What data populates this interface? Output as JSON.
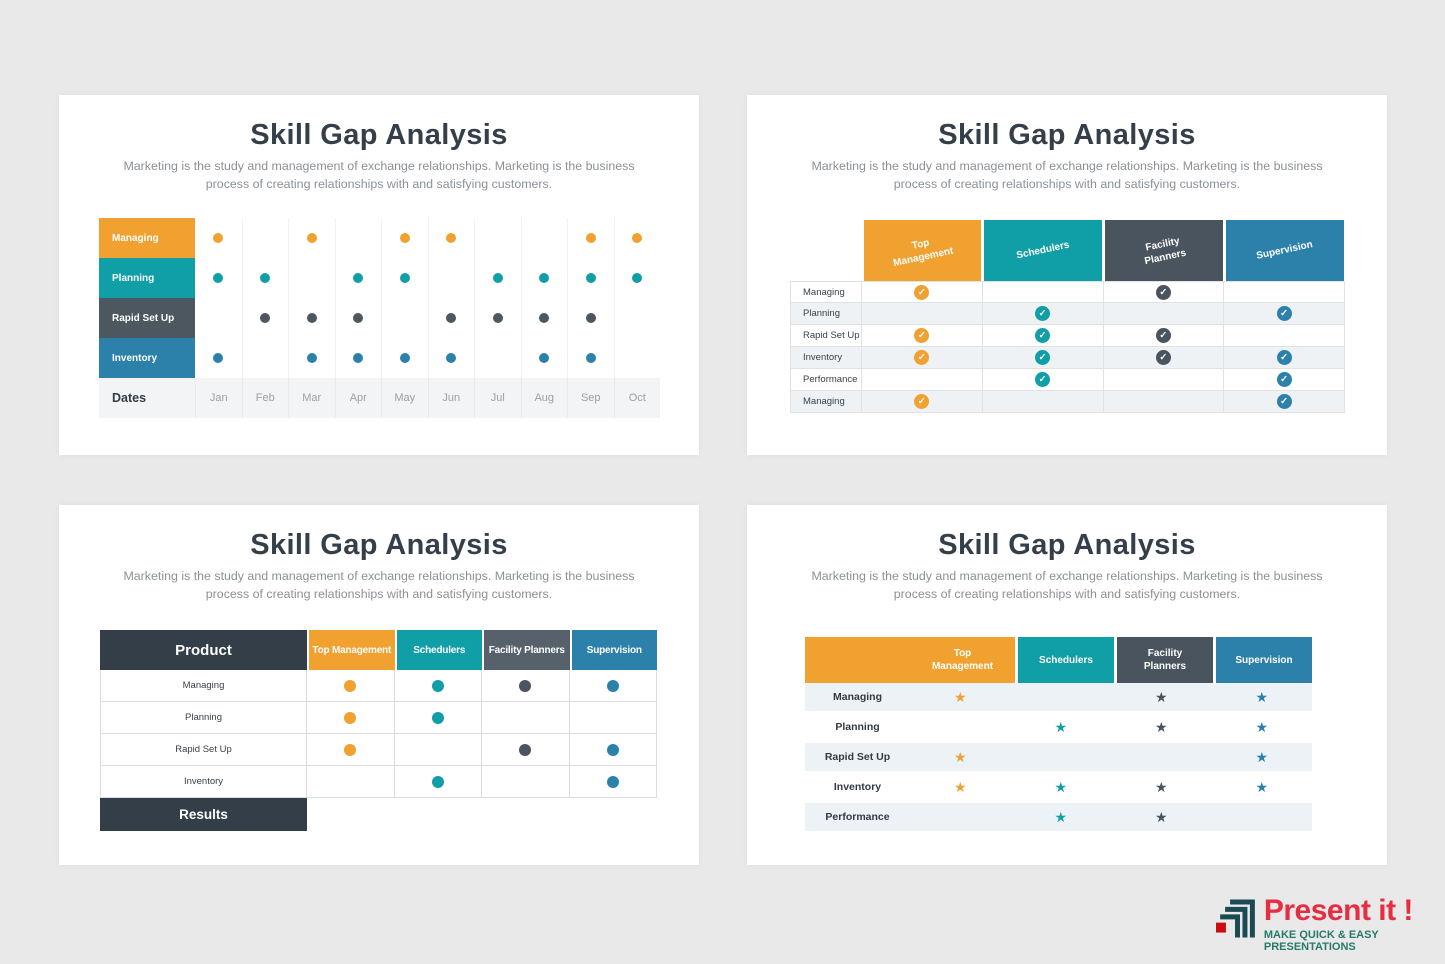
{
  "colors": {
    "orange": "#F0A12F",
    "teal": "#109FA6",
    "slate": "#4D575F",
    "darkslate": "#4A545E",
    "grayblue": "#57616B",
    "blue": "#2C81AA",
    "dark": "#333E48",
    "heading": "#353F4A",
    "page_bg": "#E9E9EA",
    "logo_red": "#E62E42",
    "logo_green": "#27796B",
    "logo_icon": "#1C4A52",
    "logo_icon_red": "#CC0A0F"
  },
  "chart_data": [
    {
      "type": "table",
      "variant": "timeline-dot-chart",
      "title": "Skill Gap Analysis",
      "subtitle_line1": "Marketing is the study and management of exchange relationships. Marketing is the business",
      "subtitle_line2": "process of creating relationships with and satisfying customers.",
      "corner_label": "Dates",
      "columns": [
        "Jan",
        "Feb",
        "Mar",
        "Apr",
        "May",
        "Jun",
        "Jul",
        "Aug",
        "Sep",
        "Oct"
      ],
      "rows": [
        {
          "label": "Managing",
          "color": "orange",
          "dots": [
            "Jan",
            "Mar",
            "May",
            "Jun",
            "Sep",
            "Oct"
          ]
        },
        {
          "label": "Planning",
          "color": "teal",
          "dots": [
            "Jan",
            "Feb",
            "Apr",
            "May",
            "Jul",
            "Aug",
            "Sep",
            "Oct"
          ]
        },
        {
          "label": "Rapid Set Up",
          "color": "slate",
          "dots": [
            "Feb",
            "Mar",
            "Apr",
            "Jun",
            "Jul",
            "Aug",
            "Sep"
          ]
        },
        {
          "label": "Inventory",
          "color": "blue",
          "dots": [
            "Jan",
            "Mar",
            "Apr",
            "May",
            "Jun",
            "Aug",
            "Sep"
          ]
        }
      ]
    },
    {
      "type": "table",
      "variant": "checkmark-matrix",
      "title": "Skill Gap Analysis",
      "subtitle_line1": "Marketing is the study and management of exchange relationships. Marketing is the business",
      "subtitle_line2": "process of creating relationships with and satisfying customers.",
      "columns": [
        {
          "label": "Top Management",
          "color": "orange"
        },
        {
          "label": "Schedulers",
          "color": "teal"
        },
        {
          "label": "Facility Planners",
          "color": "darkslate"
        },
        {
          "label": "Supervision",
          "color": "blue"
        }
      ],
      "rows": [
        {
          "label": "Managing",
          "marks": [
            1,
            0,
            1,
            0
          ]
        },
        {
          "label": "Planning",
          "marks": [
            0,
            1,
            0,
            1
          ]
        },
        {
          "label": "Rapid Set Up",
          "marks": [
            1,
            1,
            1,
            0
          ]
        },
        {
          "label": "Inventory",
          "marks": [
            1,
            1,
            1,
            1
          ]
        },
        {
          "label": "Performance",
          "marks": [
            0,
            1,
            0,
            1
          ]
        },
        {
          "label": "Managing",
          "marks": [
            1,
            0,
            0,
            1
          ]
        }
      ]
    },
    {
      "type": "table",
      "variant": "product-dot-matrix",
      "title": "Skill Gap Analysis",
      "subtitle_line1": "Marketing is the study and management of exchange relationships. Marketing is the business",
      "subtitle_line2": "process of creating relationships with and satisfying customers.",
      "corner_label": "Product",
      "footer_label": "Results",
      "columns": [
        {
          "label": "Top Management",
          "color": "orange"
        },
        {
          "label": "Schedulers",
          "color": "teal"
        },
        {
          "label": "Facility Planners",
          "color": "darkslate",
          "header_color": "grayblue"
        },
        {
          "label": "Supervision",
          "color": "blue"
        }
      ],
      "rows": [
        {
          "label": "Managing",
          "marks": [
            1,
            1,
            1,
            1
          ]
        },
        {
          "label": "Planning",
          "marks": [
            1,
            1,
            0,
            0
          ]
        },
        {
          "label": "Rapid Set Up",
          "marks": [
            1,
            0,
            1,
            1
          ]
        },
        {
          "label": "Inventory",
          "marks": [
            0,
            1,
            0,
            1
          ]
        }
      ]
    },
    {
      "type": "table",
      "variant": "star-matrix",
      "title": "Skill Gap Analysis",
      "subtitle_line1": "Marketing is the study and management of exchange relationships. Marketing is the business",
      "subtitle_line2": "process of creating relationships with and satisfying customers.",
      "columns": [
        {
          "label": "Top Management",
          "color": "orange"
        },
        {
          "label": "Schedulers",
          "color": "teal"
        },
        {
          "label": "Facility Planners",
          "color": "darkslate"
        },
        {
          "label": "Supervision",
          "color": "blue"
        }
      ],
      "rows": [
        {
          "label": "Managing",
          "marks": [
            1,
            0,
            1,
            1
          ]
        },
        {
          "label": "Planning",
          "marks": [
            0,
            1,
            1,
            1
          ]
        },
        {
          "label": "Rapid Set Up",
          "marks": [
            1,
            0,
            0,
            1
          ]
        },
        {
          "label": "Inventory",
          "marks": [
            1,
            1,
            1,
            1
          ]
        },
        {
          "label": "Performance",
          "marks": [
            0,
            1,
            1,
            0
          ]
        }
      ]
    }
  ],
  "logo": {
    "title": "Present it !",
    "tagline": "MAKE QUICK & EASY PRESENTATIONS"
  }
}
